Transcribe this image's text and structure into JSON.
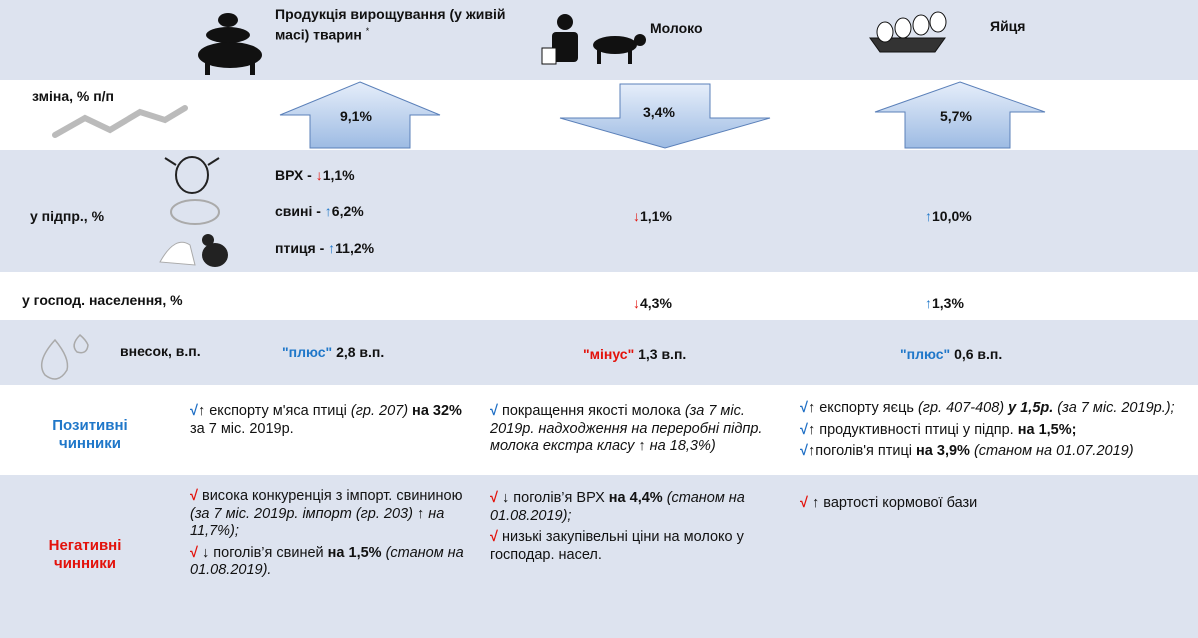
{
  "header": {
    "livestock": "Продукція вирощування (у живій масі) тварин",
    "livestock_note": "*",
    "milk": "Молоко",
    "eggs": "Яйця"
  },
  "change": {
    "label": "зміна, % п/п",
    "values": [
      "9,1%",
      "3,4%",
      "5,7%"
    ]
  },
  "enterprises": {
    "label": "у підпр., %",
    "livestock": [
      {
        "name": "ВРХ -",
        "arrow": "↓",
        "value": "1,1%"
      },
      {
        "name": "свині -",
        "arrow": "↑",
        "value": "6,2%"
      },
      {
        "name": "птиця -",
        "arrow": "↑",
        "value": "11,2%"
      }
    ],
    "milk": {
      "arrow": "↓",
      "value": "1,1%"
    },
    "eggs": {
      "arrow": "↑",
      "value": "10,0%"
    }
  },
  "households": {
    "label": "у господ. населення, %",
    "milk": {
      "arrow": "↓",
      "value": "4,3%"
    },
    "eggs": {
      "arrow": "↑",
      "value": "1,3%"
    }
  },
  "contribution": {
    "label": "внесок, в.п.",
    "items": [
      {
        "sign": "\"плюс\"",
        "value": "2,8 в.п."
      },
      {
        "sign": "\"мінус\"",
        "value": "1,3 в.п."
      },
      {
        "sign": "\"плюс\"",
        "value": "0,6 в.п."
      }
    ]
  },
  "positive": {
    "label": "Позитивні чинники",
    "cells": [
      [
        [
          "√",
          "↑",
          " експорту м'яса птиці",
          " (гр. 207)",
          " на 32%",
          " за 7 міс. 2019р."
        ]
      ],
      [
        [
          "√",
          " покращення якості молока",
          " (за 7 міс. 2019р. надходження на переробні підпр. молока екстра класу",
          " ↑",
          " на 18,3%)"
        ]
      ],
      [
        [
          "√",
          "↑",
          " експорту яєць",
          " (гр. 407-408)",
          " у 1,5р.",
          " (за 7 міс. 2019р.);"
        ],
        [
          "√",
          "↑",
          " продуктивності  птиці у підпр.",
          " на 1,5%;"
        ],
        [
          "√",
          "↑",
          "поголів'я птиці",
          " на 3,9%",
          " (станом на 01.07.2019)"
        ]
      ]
    ]
  },
  "negative": {
    "label": "Негативні чинники",
    "cells": [
      [
        [
          "√",
          " висока конкуренція з імпорт. свининою",
          " (за 7 міс. 2019р. імпорт (гр. 203)",
          " ↑",
          " на 11,7%);"
        ],
        [
          "√",
          " ↓",
          " поголів’я свиней",
          " на 1,5%",
          " (станом на 01.08.2019)."
        ]
      ],
      [
        [
          "√",
          " ↓",
          " поголів’я ВРХ",
          " на 4,4%",
          " (станом на 01.08.2019);"
        ],
        [
          "√",
          " низькі закупівельні ціни на молоко у господар. насел."
        ]
      ],
      [
        [
          "√",
          " ↑",
          " вартості кормової бази"
        ]
      ]
    ]
  }
}
